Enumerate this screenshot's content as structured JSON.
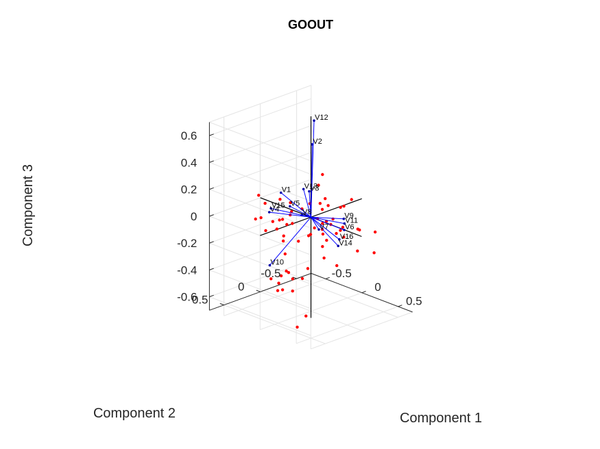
{
  "chart_data": {
    "type": "scatter",
    "title": "GOOUT",
    "xlabel": "Component 1",
    "ylabel": "Component 2",
    "zlabel": "Component 3",
    "xlim": [
      -0.7,
      0.7
    ],
    "ylim": [
      -0.7,
      0.7
    ],
    "zlim": [
      -0.7,
      0.7
    ],
    "x_ticks": [
      "-0.5",
      "0",
      "0.5"
    ],
    "y_ticks": [
      "-0.5",
      "0",
      "0.5"
    ],
    "z_ticks": [
      "-0.6",
      "-0.4",
      "-0.2",
      "0",
      "0.2",
      "0.4",
      "0.6"
    ],
    "grid": true,
    "colors": {
      "vectors": "#0000ff",
      "observations": "#ff0000",
      "axes": "#000000"
    },
    "vectors": [
      {
        "label": "V1",
        "x": -0.092,
        "y": 0.322,
        "z": 0.226
      },
      {
        "label": "V2",
        "x": -0.01,
        "y": -0.027,
        "z": 0.534
      },
      {
        "label": "V3",
        "x": 0.021,
        "y": 0.045,
        "z": 0.205
      },
      {
        "label": "V4",
        "x": -0.036,
        "y": 0.538,
        "z": 0.135
      },
      {
        "label": "V5",
        "x": -0.063,
        "y": 0.227,
        "z": 0.112
      },
      {
        "label": "V6",
        "x": 0.428,
        "y": -0.031,
        "z": -0.014
      },
      {
        "label": "V7",
        "x": 0.123,
        "y": 0.014,
        "z": -0.064
      },
      {
        "label": "V8",
        "x": -0.035,
        "y": 0.092,
        "z": 0.026
      },
      {
        "label": "V9",
        "x": 0.389,
        "y": -0.063,
        "z": 0.055
      },
      {
        "label": "V10",
        "x": -0.104,
        "y": 0.463,
        "z": -0.289
      },
      {
        "label": "V11",
        "x": 0.409,
        "y": -0.053,
        "z": 0.026
      },
      {
        "label": "V12",
        "x": -0.027,
        "y": -0.069,
        "z": 0.699
      },
      {
        "label": "V13",
        "x": -0.056,
        "y": 0.047,
        "z": 0.206
      },
      {
        "label": "V14",
        "x": 0.403,
        "y": 0.027,
        "z": -0.126
      },
      {
        "label": "V15",
        "x": -0.049,
        "y": 0.502,
        "z": 0.153
      },
      {
        "label": "V16",
        "x": 0.393,
        "y": 0.002,
        "z": -0.085
      }
    ],
    "points": [
      [
        0.128,
        -0.031,
        0.337
      ],
      [
        0.125,
        0.021,
        0.267
      ],
      [
        -0.116,
        0.604,
        0.257
      ],
      [
        -0.108,
        0.524,
        0.183
      ],
      [
        0.072,
        -0.084,
        0.056
      ],
      [
        0.079,
        -0.117,
        0.131
      ],
      [
        0.08,
        -0.157,
        0.072
      ],
      [
        -0.085,
        0.441,
        0.036
      ],
      [
        0.05,
        0.067,
        0.124
      ],
      [
        -0.084,
        0.342,
        0.182
      ],
      [
        0.124,
        0.034,
        0.021
      ],
      [
        0.167,
        0.009,
        -0.011
      ],
      [
        0.092,
        0.096,
        -0.091
      ],
      [
        0.195,
        0.038,
        -0.044
      ],
      [
        0.283,
        0.009,
        0.005
      ],
      [
        0.301,
        -0.107,
        0.114
      ],
      [
        0.297,
        -0.007,
        0.046
      ],
      [
        0.375,
        -0.185,
        0.172
      ],
      [
        0.302,
        -0.152,
        0.114
      ],
      [
        0.329,
        -0.021,
        -0.058
      ],
      [
        0.349,
        -0.057,
        -0.038
      ],
      [
        0.327,
        -0.112,
        -0.03
      ],
      [
        0.374,
        -0.079,
        -0.088
      ],
      [
        0.31,
        0.129,
        -0.215
      ],
      [
        0.475,
        -0.171,
        -0.025
      ],
      [
        0.471,
        -0.199,
        -0.038
      ],
      [
        0.599,
        -0.286,
        -0.044
      ],
      [
        0.508,
        -0.134,
        -0.174
      ],
      [
        0.635,
        -0.236,
        -0.181
      ],
      [
        0.413,
        0.056,
        -0.265
      ],
      [
        0.222,
        0.063,
        -0.161
      ],
      [
        0.234,
        0.018,
        -0.121
      ],
      [
        0.04,
        0.072,
        -0.116
      ],
      [
        -0.001,
        0.172,
        -0.146
      ],
      [
        -0.049,
        0.384,
        0.044
      ],
      [
        -0.025,
        0.232,
        -0.007
      ],
      [
        -0.101,
        0.522,
        -0.019
      ],
      [
        -0.015,
        0.271,
        0.066
      ],
      [
        -0.037,
        0.295,
        -0.005
      ],
      [
        -0.071,
        0.398,
        -0.025
      ],
      [
        -0.111,
        0.652,
        0.091
      ],
      [
        -0.113,
        0.575,
        0.085
      ],
      [
        -0.054,
        0.322,
        -0.088
      ],
      [
        -0.072,
        0.309,
        -0.132
      ],
      [
        -0.072,
        0.284,
        -0.233
      ],
      [
        -0.142,
        0.409,
        -0.408
      ],
      [
        -0.103,
        0.307,
        -0.398
      ],
      [
        -0.09,
        0.249,
        -0.371
      ],
      [
        -0.074,
        0.234,
        -0.382
      ],
      [
        -0.026,
        0.092,
        -0.445
      ],
      [
        0.003,
        0.046,
        -0.373
      ],
      [
        -0.06,
        0.192,
        -0.434
      ],
      [
        -0.109,
        0.282,
        -0.508
      ],
      [
        -0.076,
        0.177,
        -0.531
      ],
      [
        -0.126,
        0.332,
        -0.508
      ],
      [
        -0.123,
        0.321,
        -0.454
      ],
      [
        -0.034,
        0.035,
        -0.736
      ],
      [
        -0.086,
        0.103,
        -0.816
      ],
      [
        -0.05,
        0.217,
        0.074
      ],
      [
        -0.043,
        0.081,
        0.068
      ],
      [
        0.074,
        0.026,
        -0.06
      ],
      [
        0.174,
        -0.04,
        -0.003
      ],
      [
        0.179,
        0.014,
        -0.087
      ],
      [
        0.067,
        -0.059,
        0.104
      ],
      [
        -0.015,
        0.268,
        0.157
      ],
      [
        -0.059,
        0.332,
        0.036
      ]
    ]
  }
}
